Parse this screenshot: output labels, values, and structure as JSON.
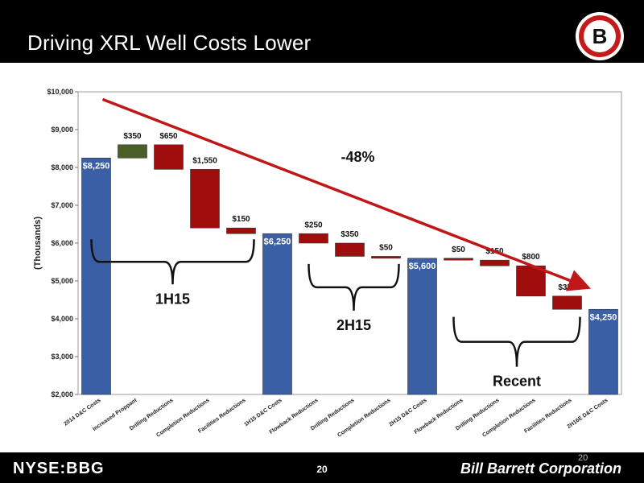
{
  "slide": {
    "title": "Driving XRL Well Costs Lower",
    "ticker": "NYSE:BBG",
    "page_number": "20",
    "page_number_ghost": "20",
    "company": "Bill Barrett Corporation"
  },
  "logo": {
    "letter": "B"
  },
  "colors": {
    "total_bar": "#3a5fa5",
    "increase_bar": "#4b5e27",
    "decrease_bar": "#a00d0d",
    "arrow": "#c01818"
  },
  "chart_data": {
    "type": "bar",
    "subtype": "waterfall",
    "ylabel": "(Thousands)",
    "ylim": [
      2000,
      10000
    ],
    "yticks": [
      "$2,000",
      "$3,000",
      "$4,000",
      "$5,000",
      "$6,000",
      "$7,000",
      "$8,000",
      "$9,000",
      "$10,000"
    ],
    "ytick_values": [
      2000,
      3000,
      4000,
      5000,
      6000,
      7000,
      8000,
      9000,
      10000
    ],
    "grid": false,
    "categories": [
      "2014 D&C Costs",
      "Increased Proppant",
      "Drilling Reductions",
      "Completion Reductions",
      "Facilities Reductions",
      "1H15 D&C Costs",
      "Flowback Reductions",
      "Drilling Reductions",
      "Completion Reductions",
      "2H15 D&C Costs",
      "Flowback Reductions",
      "Drilling Reductions",
      "Completion Reductions",
      "Facilities Reductions",
      "2H16E D&C Costs"
    ],
    "bars": [
      {
        "kind": "total",
        "start": 2000,
        "end": 8250,
        "label": "$8,250"
      },
      {
        "kind": "increase",
        "start": 8250,
        "end": 8600,
        "label": "$350"
      },
      {
        "kind": "decrease",
        "start": 8600,
        "end": 7950,
        "label": "$650"
      },
      {
        "kind": "decrease",
        "start": 7950,
        "end": 6400,
        "label": "$1,550"
      },
      {
        "kind": "decrease",
        "start": 6400,
        "end": 6250,
        "label": "$150"
      },
      {
        "kind": "total",
        "start": 2000,
        "end": 6250,
        "label": "$6,250"
      },
      {
        "kind": "decrease",
        "start": 6250,
        "end": 6000,
        "label": "$250"
      },
      {
        "kind": "decrease",
        "start": 6000,
        "end": 5650,
        "label": "$350"
      },
      {
        "kind": "decrease",
        "start": 5650,
        "end": 5600,
        "label": "$50"
      },
      {
        "kind": "total",
        "start": 2000,
        "end": 5600,
        "label": "$5,600"
      },
      {
        "kind": "decrease",
        "start": 5600,
        "end": 5550,
        "label": "$50"
      },
      {
        "kind": "decrease",
        "start": 5550,
        "end": 5400,
        "label": "$150"
      },
      {
        "kind": "decrease",
        "start": 5400,
        "end": 4600,
        "label": "$800"
      },
      {
        "kind": "decrease",
        "start": 4600,
        "end": 4250,
        "label": "$350"
      },
      {
        "kind": "total",
        "start": 2000,
        "end": 4250,
        "label": "$4,250"
      }
    ],
    "annotations": {
      "trend_label": "-48%",
      "groups": [
        {
          "label": "1H15",
          "from_index": 0,
          "to_index": 4
        },
        {
          "label": "2H15",
          "from_index": 6,
          "to_index": 8
        },
        {
          "label": "Recent",
          "from_index": 10,
          "to_index": 13
        }
      ]
    }
  }
}
